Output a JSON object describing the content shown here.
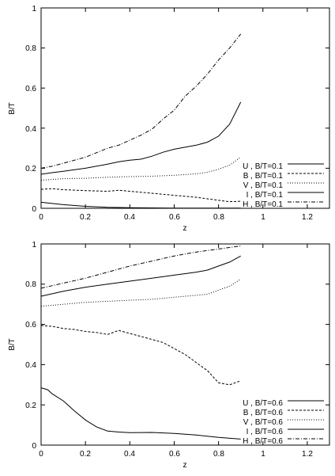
{
  "chart_data": [
    {
      "type": "line",
      "xlabel": "z",
      "ylabel": "B/T",
      "xlim": [
        0,
        1.3
      ],
      "ylim": [
        0,
        1
      ],
      "xticks": [
        "0",
        "0.2",
        "0.4",
        "0.6",
        "0.8",
        "1",
        "1.2"
      ],
      "yticks": [
        "0",
        "0.2",
        "0.4",
        "0.6",
        "0.8",
        "1"
      ],
      "legend_position": "bottom-right",
      "series": [
        {
          "name": "U , B/T=0.1",
          "dash": "solid",
          "x": [
            0.0,
            0.1,
            0.2,
            0.3,
            0.4,
            0.5,
            0.6,
            0.7,
            0.8,
            0.9
          ],
          "y": [
            0.03,
            0.018,
            0.01,
            0.005,
            0.003,
            0.002,
            0.001,
            0.001,
            0.001,
            0.001
          ]
        },
        {
          "name": "B , B/T=0.1",
          "dash": "dashed",
          "x": [
            0.0,
            0.05,
            0.1,
            0.2,
            0.3,
            0.35,
            0.4,
            0.5,
            0.6,
            0.7,
            0.8,
            0.85,
            0.9
          ],
          "y": [
            0.095,
            0.098,
            0.093,
            0.088,
            0.085,
            0.09,
            0.085,
            0.075,
            0.065,
            0.055,
            0.04,
            0.033,
            0.035
          ]
        },
        {
          "name": "V , B/T=0.1",
          "dash": "dotted",
          "x": [
            0.0,
            0.1,
            0.2,
            0.3,
            0.4,
            0.5,
            0.6,
            0.7,
            0.75,
            0.8,
            0.85,
            0.9
          ],
          "y": [
            0.14,
            0.148,
            0.15,
            0.155,
            0.158,
            0.16,
            0.165,
            0.172,
            0.18,
            0.195,
            0.215,
            0.255
          ]
        },
        {
          "name": "I , B/T=0.1",
          "dash": "solid",
          "x": [
            0.0,
            0.05,
            0.1,
            0.2,
            0.3,
            0.35,
            0.4,
            0.45,
            0.5,
            0.55,
            0.6,
            0.7,
            0.75,
            0.8,
            0.85,
            0.9
          ],
          "y": [
            0.17,
            0.178,
            0.185,
            0.2,
            0.22,
            0.232,
            0.24,
            0.245,
            0.26,
            0.28,
            0.295,
            0.315,
            0.33,
            0.36,
            0.42,
            0.53
          ]
        },
        {
          "name": "H , B/T=0.1",
          "dash": "dashdot",
          "x": [
            0.0,
            0.05,
            0.1,
            0.2,
            0.3,
            0.35,
            0.4,
            0.45,
            0.5,
            0.55,
            0.6,
            0.65,
            0.7,
            0.75,
            0.8,
            0.85,
            0.9
          ],
          "y": [
            0.2,
            0.21,
            0.225,
            0.255,
            0.3,
            0.315,
            0.34,
            0.365,
            0.395,
            0.445,
            0.49,
            0.56,
            0.61,
            0.67,
            0.74,
            0.8,
            0.87
          ]
        }
      ]
    },
    {
      "type": "line",
      "xlabel": "z",
      "ylabel": "B/T",
      "xlim": [
        0,
        1.3
      ],
      "ylim": [
        0,
        1
      ],
      "xticks": [
        "0",
        "0.2",
        "0.4",
        "0.6",
        "0.8",
        "1",
        "1.2"
      ],
      "yticks": [
        "0",
        "0.2",
        "0.4",
        "0.6",
        "0.8",
        "1"
      ],
      "legend_position": "bottom-right",
      "series": [
        {
          "name": "U , B/T=0.6",
          "dash": "solid",
          "x": [
            0.0,
            0.03,
            0.05,
            0.1,
            0.15,
            0.2,
            0.25,
            0.3,
            0.35,
            0.4,
            0.5,
            0.6,
            0.7,
            0.8,
            0.9
          ],
          "y": [
            0.285,
            0.275,
            0.255,
            0.22,
            0.17,
            0.125,
            0.09,
            0.07,
            0.065,
            0.062,
            0.063,
            0.058,
            0.05,
            0.038,
            0.03
          ]
        },
        {
          "name": "B , B/T=0.6",
          "dash": "dashed",
          "x": [
            0.0,
            0.05,
            0.1,
            0.15,
            0.2,
            0.25,
            0.3,
            0.35,
            0.4,
            0.45,
            0.5,
            0.55,
            0.6,
            0.65,
            0.7,
            0.75,
            0.8,
            0.85,
            0.9
          ],
          "y": [
            0.595,
            0.59,
            0.58,
            0.575,
            0.565,
            0.56,
            0.55,
            0.57,
            0.555,
            0.54,
            0.525,
            0.51,
            0.48,
            0.45,
            0.41,
            0.37,
            0.31,
            0.3,
            0.32
          ]
        },
        {
          "name": "V , B/T=0.6",
          "dash": "dotted",
          "x": [
            0.0,
            0.1,
            0.2,
            0.3,
            0.4,
            0.5,
            0.6,
            0.7,
            0.75,
            0.8,
            0.85,
            0.9
          ],
          "y": [
            0.69,
            0.7,
            0.71,
            0.715,
            0.72,
            0.725,
            0.735,
            0.745,
            0.75,
            0.77,
            0.79,
            0.825
          ]
        },
        {
          "name": "I , B/T=0.6",
          "dash": "solid",
          "x": [
            0.0,
            0.1,
            0.2,
            0.3,
            0.4,
            0.5,
            0.6,
            0.7,
            0.75,
            0.8,
            0.85,
            0.9
          ],
          "y": [
            0.74,
            0.765,
            0.785,
            0.8,
            0.815,
            0.83,
            0.845,
            0.86,
            0.87,
            0.89,
            0.91,
            0.94
          ]
        },
        {
          "name": "H , B/T=0.6",
          "dash": "dashdot",
          "x": [
            0.0,
            0.1,
            0.2,
            0.3,
            0.4,
            0.5,
            0.6,
            0.7,
            0.8,
            0.9
          ],
          "y": [
            0.78,
            0.805,
            0.83,
            0.86,
            0.89,
            0.915,
            0.94,
            0.96,
            0.975,
            0.99
          ]
        }
      ]
    }
  ]
}
